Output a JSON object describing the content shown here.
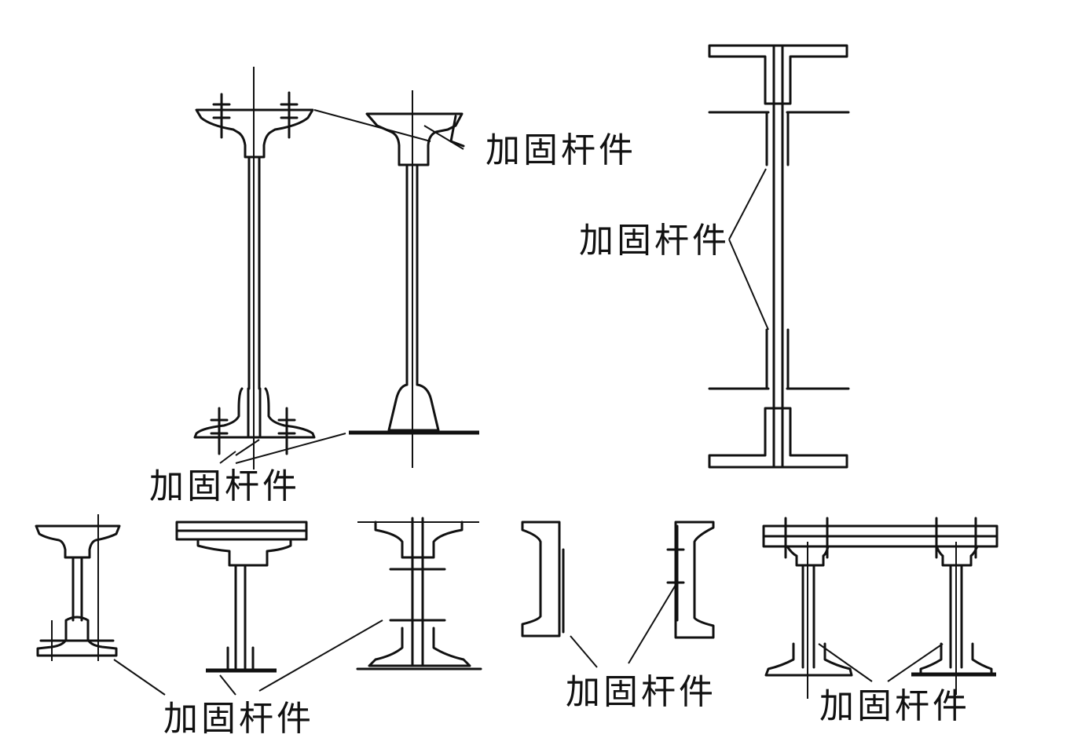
{
  "labels": {
    "top_left": "加固杆件",
    "top_right": "加固杆件",
    "middle_left": "加固杆件",
    "bottom_1": "加固杆件",
    "bottom_2": "加固杆件",
    "bottom_3": "加固杆件"
  }
}
